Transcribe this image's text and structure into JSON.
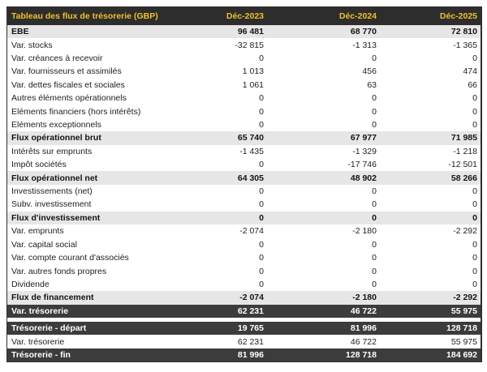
{
  "chart_data": {
    "type": "table",
    "title": "Tableau des flux de trésorerie (GBP)",
    "currency": "GBP",
    "columns": [
      "Déc-2023",
      "Déc-2024",
      "Déc-2025"
    ],
    "rows": [
      {
        "label": "EBE",
        "values": [
          "96 481",
          "68 770",
          "72 810"
        ],
        "style": "band"
      },
      {
        "label": "Var. stocks",
        "values": [
          "-32 815",
          "-1 313",
          "-1 365"
        ],
        "style": "normal"
      },
      {
        "label": "Var. créances à recevoir",
        "values": [
          "0",
          "0",
          "0"
        ],
        "style": "normal"
      },
      {
        "label": "Var. fournisseurs et assimilés",
        "values": [
          "1 013",
          "456",
          "474"
        ],
        "style": "normal"
      },
      {
        "label": "Var. dettes fiscales et sociales",
        "values": [
          "1 061",
          "63",
          "66"
        ],
        "style": "normal"
      },
      {
        "label": "Autres éléments opérationnels",
        "values": [
          "0",
          "0",
          "0"
        ],
        "style": "normal"
      },
      {
        "label": "Eléments financiers (hors intérêts)",
        "values": [
          "0",
          "0",
          "0"
        ],
        "style": "normal"
      },
      {
        "label": "Eléments exceptionnels",
        "values": [
          "0",
          "0",
          "0"
        ],
        "style": "normal"
      },
      {
        "label": "Flux opérationnel brut",
        "values": [
          "65 740",
          "67 977",
          "71 985"
        ],
        "style": "band"
      },
      {
        "label": "Intérêts sur emprunts",
        "values": [
          "-1 435",
          "-1 329",
          "-1 218"
        ],
        "style": "normal"
      },
      {
        "label": "Impôt sociétés",
        "values": [
          "0",
          "-17 746",
          "-12 501"
        ],
        "style": "normal"
      },
      {
        "label": "Flux opérationnel net",
        "values": [
          "64 305",
          "48 902",
          "58 266"
        ],
        "style": "band"
      },
      {
        "label": "Investissements (net)",
        "values": [
          "0",
          "0",
          "0"
        ],
        "style": "normal"
      },
      {
        "label": "Subv. investissement",
        "values": [
          "0",
          "0",
          "0"
        ],
        "style": "normal"
      },
      {
        "label": "Flux d'investissement",
        "values": [
          "0",
          "0",
          "0"
        ],
        "style": "band"
      },
      {
        "label": "Var. emprunts",
        "values": [
          "-2 074",
          "-2 180",
          "-2 292"
        ],
        "style": "normal"
      },
      {
        "label": "Var. capital social",
        "values": [
          "0",
          "0",
          "0"
        ],
        "style": "normal"
      },
      {
        "label": "Var. compte courant d'associés",
        "values": [
          "0",
          "0",
          "0"
        ],
        "style": "normal"
      },
      {
        "label": "Var. autres fonds propres",
        "values": [
          "0",
          "0",
          "0"
        ],
        "style": "normal"
      },
      {
        "label": "Dividende",
        "values": [
          "0",
          "0",
          "0"
        ],
        "style": "normal"
      },
      {
        "label": "Flux de financement",
        "values": [
          "-2 074",
          "-2 180",
          "-2 292"
        ],
        "style": "band"
      },
      {
        "label": "Var. trésorerie",
        "values": [
          "62 231",
          "46 722",
          "55 975"
        ],
        "style": "dark"
      },
      {
        "style": "gap"
      },
      {
        "label": "Trésorerie - départ",
        "values": [
          "19 765",
          "81 996",
          "128 718"
        ],
        "style": "dark"
      },
      {
        "label": "Var. trésorerie",
        "values": [
          "62 231",
          "46 722",
          "55 975"
        ],
        "style": "normal"
      },
      {
        "label": "Trésorerie - fin",
        "values": [
          "81 996",
          "128 718",
          "184 692"
        ],
        "style": "dark"
      }
    ],
    "layout": {
      "legend": "none",
      "grid": "off",
      "column_alignment": "right"
    },
    "colors": {
      "header_bg": "#2d2d2d",
      "header_text": "#f0c02a",
      "band_row_bg": "#e7e6e6",
      "dark_row_bg": "#3c3c3c",
      "dark_row_text": "#ffffff",
      "body_text": "#1e1e1e",
      "border": "#2f2f2f"
    }
  }
}
